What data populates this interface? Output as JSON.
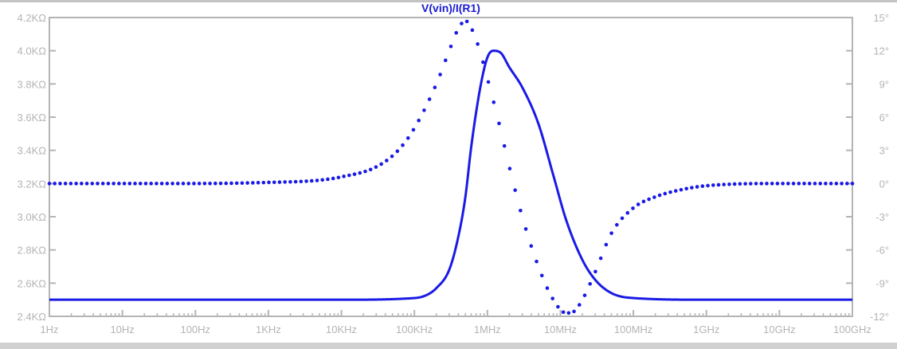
{
  "chart_data": {
    "type": "line",
    "title": "V(vin)/I(R1)",
    "x_scale": "log",
    "xlim_hz": [
      1,
      100000000000
    ],
    "x_ticks": [
      {
        "value": 1,
        "label": "1Hz"
      },
      {
        "value": 10,
        "label": "10Hz"
      },
      {
        "value": 100,
        "label": "100Hz"
      },
      {
        "value": 1000,
        "label": "1KHz"
      },
      {
        "value": 10000,
        "label": "10KHz"
      },
      {
        "value": 100000,
        "label": "100KHz"
      },
      {
        "value": 1000000,
        "label": "1MHz"
      },
      {
        "value": 10000000,
        "label": "10MHz"
      },
      {
        "value": 100000000,
        "label": "100MHz"
      },
      {
        "value": 1000000000,
        "label": "1GHz"
      },
      {
        "value": 10000000000,
        "label": "10GHz"
      },
      {
        "value": 100000000000,
        "label": "100GHz"
      }
    ],
    "y_left": {
      "unit": "KΩ",
      "ylim": [
        2.4,
        4.2
      ],
      "ticks": [
        {
          "value": 4.2,
          "label": "4.2KΩ"
        },
        {
          "value": 4.0,
          "label": "4.0KΩ"
        },
        {
          "value": 3.8,
          "label": "3.8KΩ"
        },
        {
          "value": 3.6,
          "label": "3.6KΩ"
        },
        {
          "value": 3.4,
          "label": "3.4KΩ"
        },
        {
          "value": 3.2,
          "label": "3.2KΩ"
        },
        {
          "value": 3.0,
          "label": "3.0KΩ"
        },
        {
          "value": 2.8,
          "label": "2.8KΩ"
        },
        {
          "value": 2.6,
          "label": "2.6KΩ"
        },
        {
          "value": 2.4,
          "label": "2.4KΩ"
        }
      ]
    },
    "y_right": {
      "unit": "°",
      "ylim": [
        -12,
        15
      ],
      "ticks": [
        {
          "value": 15,
          "label": "15°"
        },
        {
          "value": 12,
          "label": "12°"
        },
        {
          "value": 9,
          "label": "9°"
        },
        {
          "value": 6,
          "label": "6°"
        },
        {
          "value": 3,
          "label": "3°"
        },
        {
          "value": 0,
          "label": "0°"
        },
        {
          "value": -3,
          "label": "-3°"
        },
        {
          "value": -6,
          "label": "-6°"
        },
        {
          "value": -9,
          "label": "-9°"
        },
        {
          "value": -12,
          "label": "-12°"
        }
      ]
    },
    "grid": false,
    "series": [
      {
        "style": "solid",
        "axis": "left",
        "color": "#1a1ae6",
        "x_hz": [
          1,
          10,
          100,
          1000,
          10000,
          100000,
          150000,
          200000,
          300000,
          400000,
          500000,
          600000,
          800000,
          1000000,
          1200000,
          1500000,
          2000000,
          3000000,
          5000000,
          8000000,
          12000000,
          20000000,
          30000000,
          50000000,
          100000000,
          1000000000,
          100000000000
        ],
        "values": [
          2.5,
          2.5,
          2.5,
          2.5,
          2.5,
          2.51,
          2.53,
          2.57,
          2.68,
          2.88,
          3.12,
          3.42,
          3.78,
          3.96,
          4.0,
          3.99,
          3.9,
          3.78,
          3.56,
          3.25,
          2.98,
          2.74,
          2.62,
          2.54,
          2.51,
          2.5,
          2.5
        ]
      },
      {
        "style": "dotted",
        "axis": "right",
        "color": "#1a1ae6",
        "x_hz": [
          1,
          10,
          100,
          1000,
          5000,
          10000,
          30000,
          60000,
          100000,
          200000,
          300000,
          400000,
          500000,
          700000,
          1000000,
          1500000,
          2000000,
          3000000,
          5000000,
          8000000,
          12000000,
          15000000,
          20000000,
          30000000,
          50000000,
          100000000,
          200000000,
          500000000,
          1000000000,
          10000000000,
          100000000000
        ],
        "values": [
          0,
          0,
          0,
          0.1,
          0.3,
          0.6,
          1.5,
          3.0,
          5.0,
          9.0,
          12.0,
          14.0,
          14.7,
          13.0,
          9.5,
          5.0,
          1.5,
          -3.0,
          -7.5,
          -10.5,
          -11.7,
          -11.6,
          -10.5,
          -8.0,
          -4.5,
          -2.2,
          -1.2,
          -0.5,
          -0.2,
          0,
          0
        ]
      }
    ]
  }
}
